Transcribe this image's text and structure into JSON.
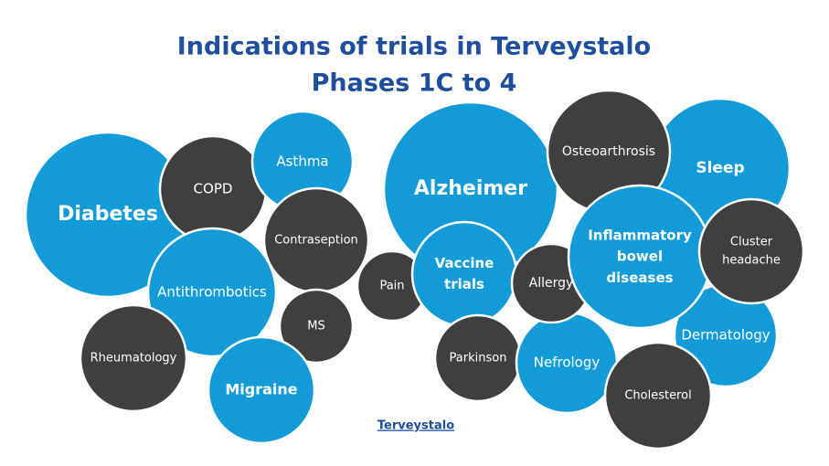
{
  "title": {
    "lines": [
      "Indications of trials in Terveystalo",
      "Phases 1C to 4"
    ]
  },
  "nodes": [
    {
      "lines": [
        "Diabetes"
      ]
    },
    {
      "lines": [
        "COPD"
      ]
    },
    {
      "lines": [
        "Asthma"
      ]
    },
    {
      "lines": [
        "Antithrombotics"
      ]
    },
    {
      "lines": [
        "Contraseption"
      ]
    },
    {
      "lines": [
        "Rheumatology"
      ]
    },
    {
      "lines": [
        "MS"
      ]
    },
    {
      "lines": [
        "Migraine"
      ]
    },
    {
      "lines": [
        "Pain"
      ]
    },
    {
      "lines": [
        "Alzheimer"
      ]
    },
    {
      "lines": [
        "Vaccine",
        "trials"
      ]
    },
    {
      "lines": [
        "Parkinson"
      ]
    },
    {
      "lines": [
        "Nefrology"
      ]
    },
    {
      "lines": [
        "Allergy"
      ]
    },
    {
      "lines": [
        "Sleep"
      ]
    },
    {
      "lines": [
        "Osteoarthrosis"
      ]
    },
    {
      "lines": [
        "Dermatology"
      ]
    },
    {
      "lines": [
        "Cholesterol"
      ]
    },
    {
      "lines": [
        "Inflammatory",
        "bowel",
        "diseases"
      ]
    },
    {
      "lines": [
        "Cluster",
        "headache"
      ]
    }
  ],
  "logo": "Terveystalo"
}
